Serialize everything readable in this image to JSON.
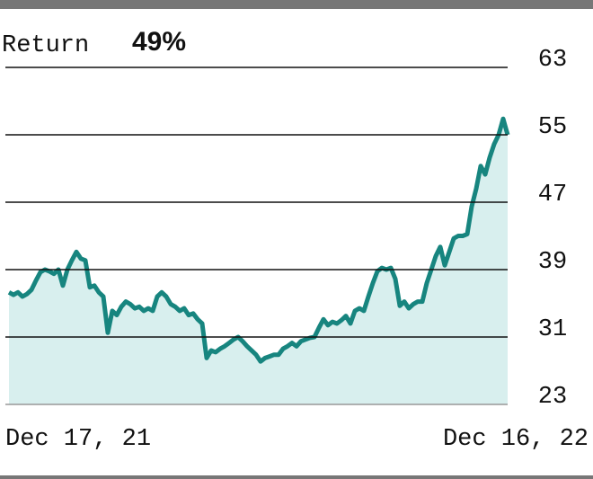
{
  "chart_data": {
    "type": "line",
    "title": "Return",
    "subtitle": "49%",
    "categories": [
      "Dec 17, 21",
      null,
      null,
      null,
      null,
      null,
      null,
      null,
      null,
      null,
      null,
      null,
      null,
      null,
      null,
      null,
      null,
      null,
      null,
      null,
      null,
      null,
      null,
      null,
      null,
      null,
      null,
      null,
      null,
      null,
      null,
      null,
      null,
      null,
      null,
      null,
      null,
      null,
      null,
      null,
      null,
      null,
      null,
      null,
      null,
      null,
      null,
      null,
      null,
      null,
      null,
      null,
      null,
      null,
      null,
      null,
      null,
      null,
      null,
      null,
      null,
      null,
      null,
      null,
      null,
      null,
      null,
      null,
      null,
      null,
      null,
      null,
      null,
      null,
      null,
      null,
      null,
      null,
      null,
      null,
      null,
      null,
      null,
      null,
      null,
      null,
      null,
      null,
      null,
      null,
      null,
      null,
      null,
      null,
      null,
      null,
      null,
      null,
      null,
      null,
      null,
      null,
      null,
      null,
      null,
      null,
      null,
      null,
      null,
      null,
      null,
      "Dec 16, 22"
    ],
    "series": [
      {
        "color": "#17857f",
        "fill": "#d8efee",
        "values": [
          36.3,
          36.0,
          36.3,
          35.8,
          36.1,
          36.6,
          37.7,
          38.7,
          39.0,
          38.8,
          38.5,
          39.0,
          37.1,
          39.0,
          40.1,
          41.1,
          40.3,
          40.1,
          36.9,
          37.1,
          36.3,
          35.8,
          31.5,
          34.1,
          33.6,
          34.6,
          35.2,
          34.9,
          34.4,
          34.6,
          34.1,
          34.4,
          34.1,
          35.8,
          36.3,
          35.8,
          34.9,
          34.6,
          34.1,
          34.4,
          33.6,
          33.8,
          33.1,
          32.6,
          28.5,
          29.4,
          29.2,
          29.6,
          29.9,
          30.3,
          30.7,
          31.0,
          30.5,
          29.9,
          29.4,
          28.9,
          28.1,
          28.5,
          28.7,
          28.9,
          28.9,
          29.6,
          29.9,
          30.3,
          29.9,
          30.5,
          30.7,
          30.9,
          31.0,
          32.1,
          33.1,
          32.4,
          32.8,
          32.6,
          33.0,
          33.5,
          32.6,
          34.1,
          34.4,
          34.1,
          35.8,
          37.4,
          38.8,
          39.2,
          39.0,
          39.2,
          37.9,
          34.7,
          35.2,
          34.4,
          34.9,
          35.2,
          35.2,
          37.4,
          39.0,
          40.6,
          41.7,
          39.5,
          41.1,
          42.7,
          43.0,
          43.0,
          43.2,
          46.5,
          48.6,
          51.3,
          50.3,
          52.3,
          53.9,
          55.0,
          56.9,
          55.0
        ]
      }
    ],
    "ylim": [
      23,
      63
    ],
    "yticks": [
      23,
      31,
      39,
      47,
      55,
      63
    ],
    "grid": true
  }
}
